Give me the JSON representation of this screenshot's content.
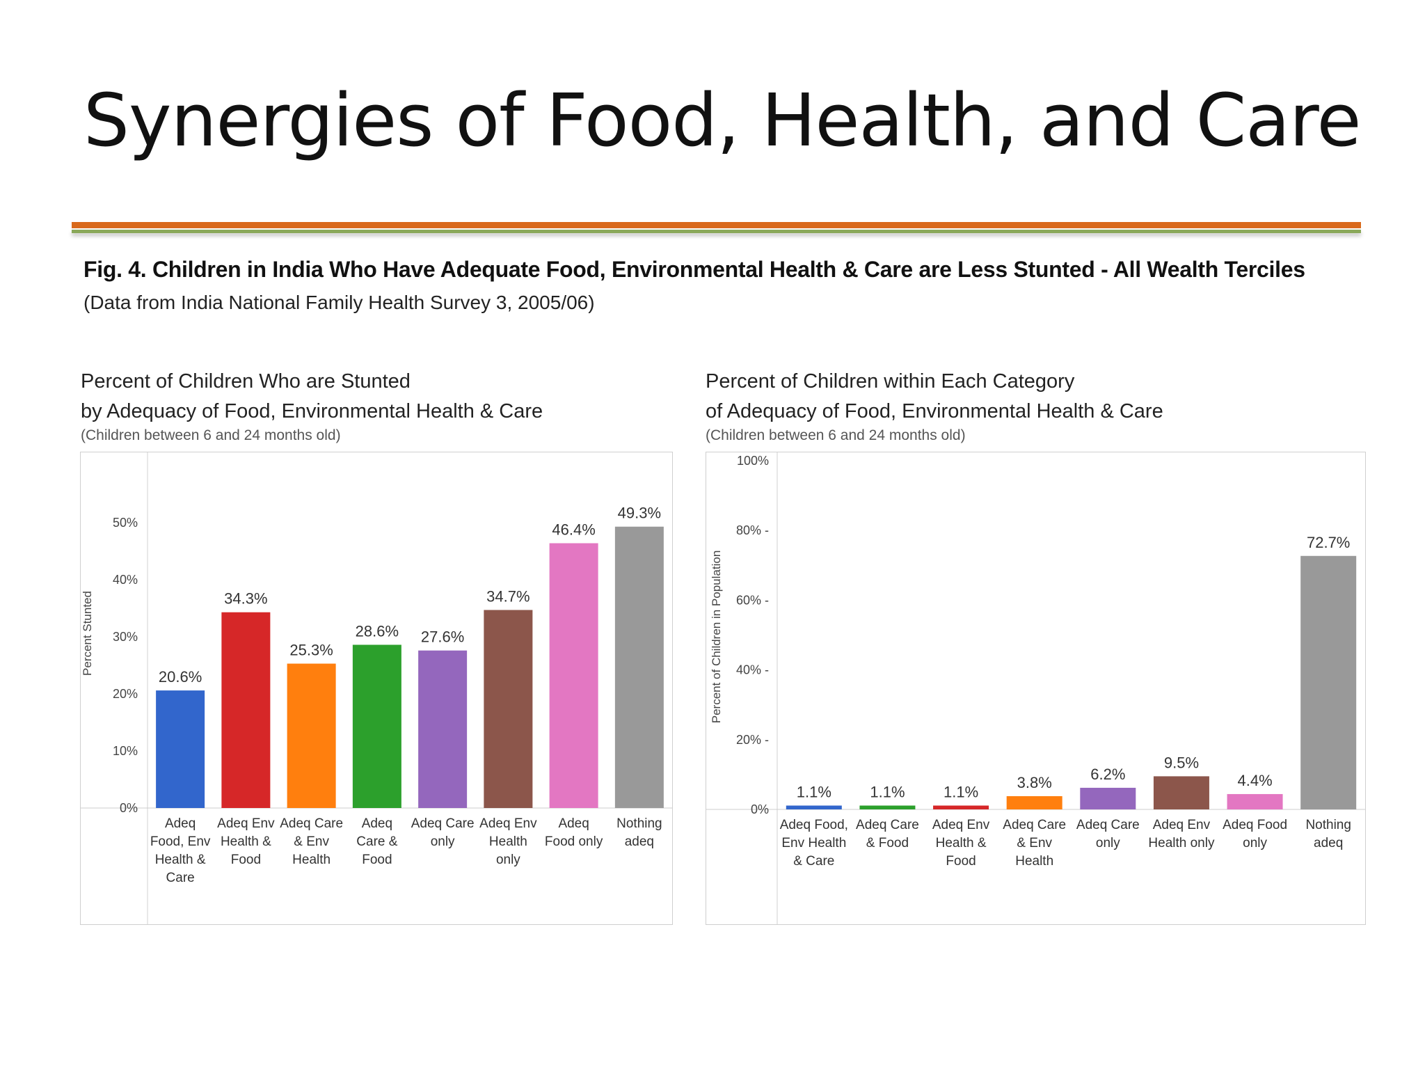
{
  "slide": {
    "title": "Synergies of Food, Health, and Care",
    "colors": {
      "divider_top": "#d9691b",
      "divider_bottom": "#8aa85a"
    }
  },
  "figure": {
    "title": "Fig. 4. Children in India Who Have Adequate Food, Environmental Health & Care are Less Stunted - All Wealth Terciles",
    "subtitle": "(Data from India National Family Health Survey 3, 2005/06)"
  },
  "chart_data": [
    {
      "type": "bar",
      "title_line1": "Percent of Children Who are Stunted",
      "title_line2": "by Adequacy of Food, Environmental Health & Care",
      "note": "(Children between 6 and 24 months old)",
      "ylabel": "Percent Stunted",
      "ylim": [
        0,
        55
      ],
      "yticks": [
        0,
        10,
        20,
        30,
        40,
        50
      ],
      "ytick_labels": [
        "0%",
        "10%",
        "20%",
        "30%",
        "40%",
        "50%"
      ],
      "grid": false,
      "categories": [
        [
          "Adeq",
          "Food, Env",
          "Health &",
          "Care"
        ],
        [
          "Adeq Env",
          "Health &",
          "Food"
        ],
        [
          "Adeq Care",
          "& Env",
          "Health"
        ],
        [
          "Adeq",
          "Care &",
          "Food"
        ],
        [
          "Adeq Care",
          "only"
        ],
        [
          "Adeq Env",
          "Health",
          "only"
        ],
        [
          "Adeq",
          "Food only"
        ],
        [
          "Nothing",
          "adeq"
        ]
      ],
      "values": [
        20.6,
        34.3,
        25.3,
        28.6,
        27.6,
        34.7,
        46.4,
        49.3
      ],
      "value_labels": [
        "20.6%",
        "34.3%",
        "25.3%",
        "28.6%",
        "27.6%",
        "34.7%",
        "46.4%",
        "49.3%"
      ],
      "colors": [
        "#3266cc",
        "#d62728",
        "#ff7f0e",
        "#2ca02c",
        "#9467bd",
        "#8c564b",
        "#e377c2",
        "#999999"
      ]
    },
    {
      "type": "bar",
      "title_line1": "Percent of Children within Each Category",
      "title_line2": "of Adequacy of Food, Environmental Health & Care",
      "note": "(Children between 6 and 24 months old)",
      "ylabel": "Percent of Children in Population",
      "ylim": [
        0,
        100
      ],
      "yticks": [
        0,
        20,
        40,
        60,
        80,
        100
      ],
      "ytick_labels": [
        "0%",
        "20% -",
        "40% -",
        "60% -",
        "80% -",
        "100%"
      ],
      "grid": false,
      "categories": [
        [
          "Adeq Food,",
          "Env Health",
          "& Care"
        ],
        [
          "Adeq  Care",
          "& Food"
        ],
        [
          "Adeq Env",
          "Health &",
          "Food"
        ],
        [
          "Adeq Care",
          "& Env",
          "Health"
        ],
        [
          "Adeq Care",
          "only"
        ],
        [
          "Adeq Env",
          "Health only"
        ],
        [
          "Adeq Food",
          "only"
        ],
        [
          "Nothing",
          "adeq"
        ]
      ],
      "values": [
        1.1,
        1.1,
        1.1,
        3.8,
        6.2,
        9.5,
        4.4,
        72.7
      ],
      "value_labels": [
        "1.1%",
        "1.1%",
        "1.1%",
        "3.8%",
        "6.2%",
        "9.5%",
        "4.4%",
        "72.7%"
      ],
      "colors": [
        "#3266cc",
        "#2ca02c",
        "#d62728",
        "#ff7f0e",
        "#9467bd",
        "#8c564b",
        "#e377c2",
        "#999999"
      ]
    }
  ]
}
